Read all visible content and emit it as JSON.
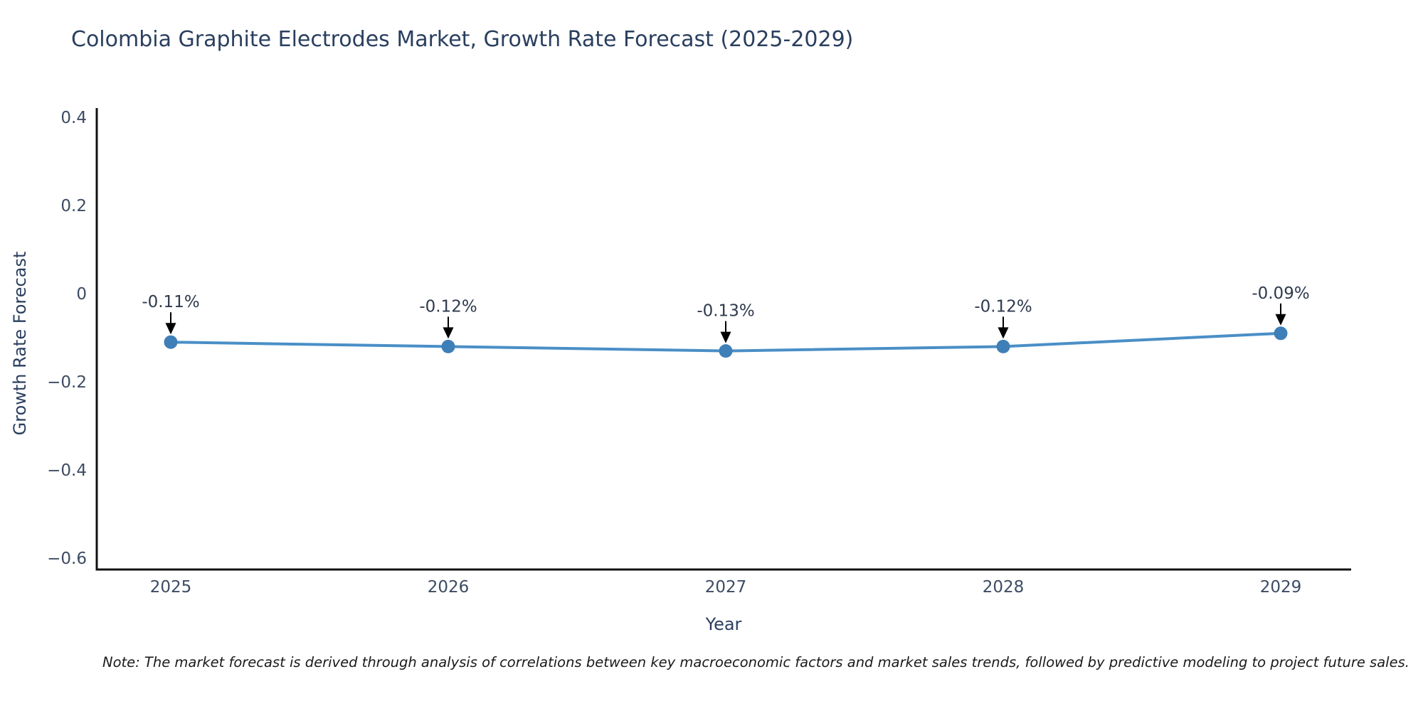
{
  "title": "Colombia Graphite Electrodes Market, Growth Rate Forecast (2025-2029)",
  "note": "Note: The market forecast is derived through analysis of correlations between key macroeconomic factors and market sales trends, followed by predictive modeling to project future sales.",
  "chart_data": {
    "type": "line",
    "title": "Colombia Graphite Electrodes Market, Growth Rate Forecast (2025-2029)",
    "xlabel": "Year",
    "ylabel": "Growth Rate Forecast",
    "categories": [
      "2025",
      "2026",
      "2027",
      "2028",
      "2029"
    ],
    "series": [
      {
        "name": "Growth Rate Forecast",
        "values": [
          -0.11,
          -0.12,
          -0.13,
          -0.12,
          -0.09
        ],
        "point_labels": [
          "-0.11%",
          "-0.12%",
          "-0.13%",
          "-0.12%",
          "-0.09%"
        ]
      }
    ],
    "ylim": [
      -0.65,
      0.45
    ],
    "yticks": [
      0.4,
      0.2,
      0,
      -0.2,
      -0.4,
      -0.6
    ],
    "grid": false,
    "legend_position": "none",
    "annotations": "value labels with downward arrows above each point",
    "colors": {
      "line": "#4a8fc7",
      "marker": "#3f7fb8",
      "axis_line": "#111111",
      "tick_text": "#3d4c63",
      "title_text": "#2a3f5f",
      "annotation_text": "#2e3a4e",
      "annotation_arrow": "#000000",
      "background": "#ffffff"
    }
  }
}
